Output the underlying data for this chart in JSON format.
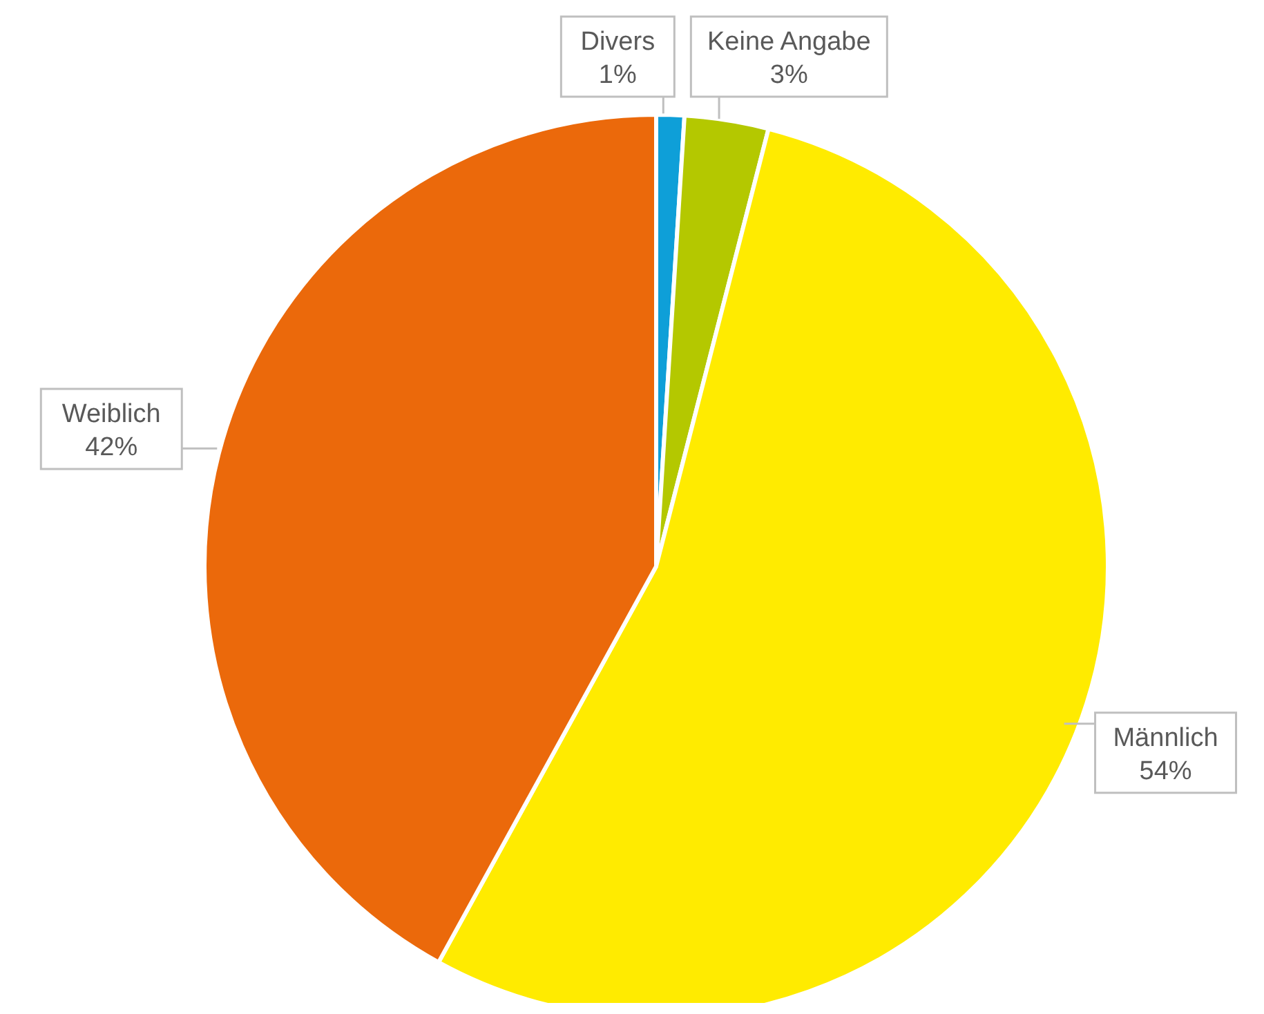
{
  "chart_data": {
    "type": "pie",
    "categories": [
      "Divers",
      "Keine Angabe",
      "Männlich",
      "Weiblich"
    ],
    "values": [
      1,
      3,
      54,
      42
    ],
    "value_labels": [
      "1%",
      "3%",
      "54%",
      "42%"
    ],
    "colors": [
      "#0e9fd8",
      "#b4c800",
      "#ffeb00",
      "#eb690b"
    ],
    "data_labels": true,
    "legend": false
  }
}
